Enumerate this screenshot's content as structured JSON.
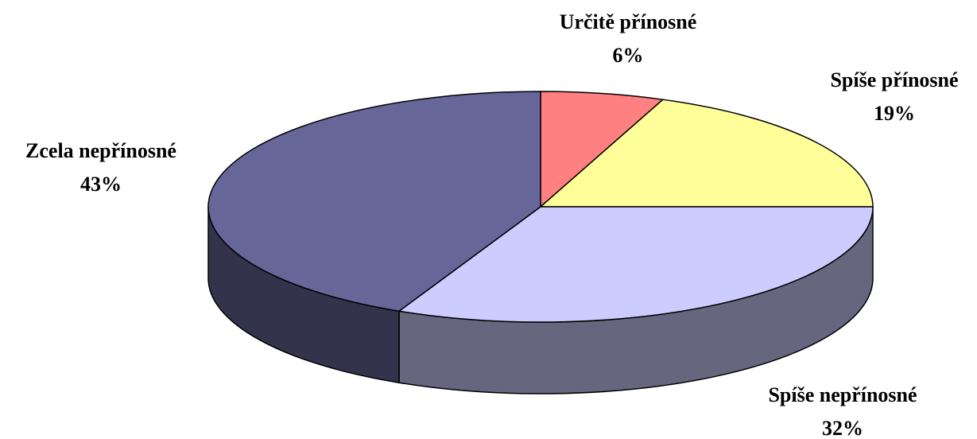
{
  "chart_data": {
    "type": "pie3d",
    "categories": [
      "Určitě přínosné",
      "Spíše přínosné",
      "Spíše nepřínosné",
      "Zcela nepřínosné"
    ],
    "values": [
      6,
      19,
      32,
      43
    ],
    "value_labels": [
      "6%",
      "19%",
      "32%",
      "43%"
    ],
    "colors": [
      "#ff8080",
      "#ffff99",
      "#ccccff",
      "#666699"
    ]
  }
}
